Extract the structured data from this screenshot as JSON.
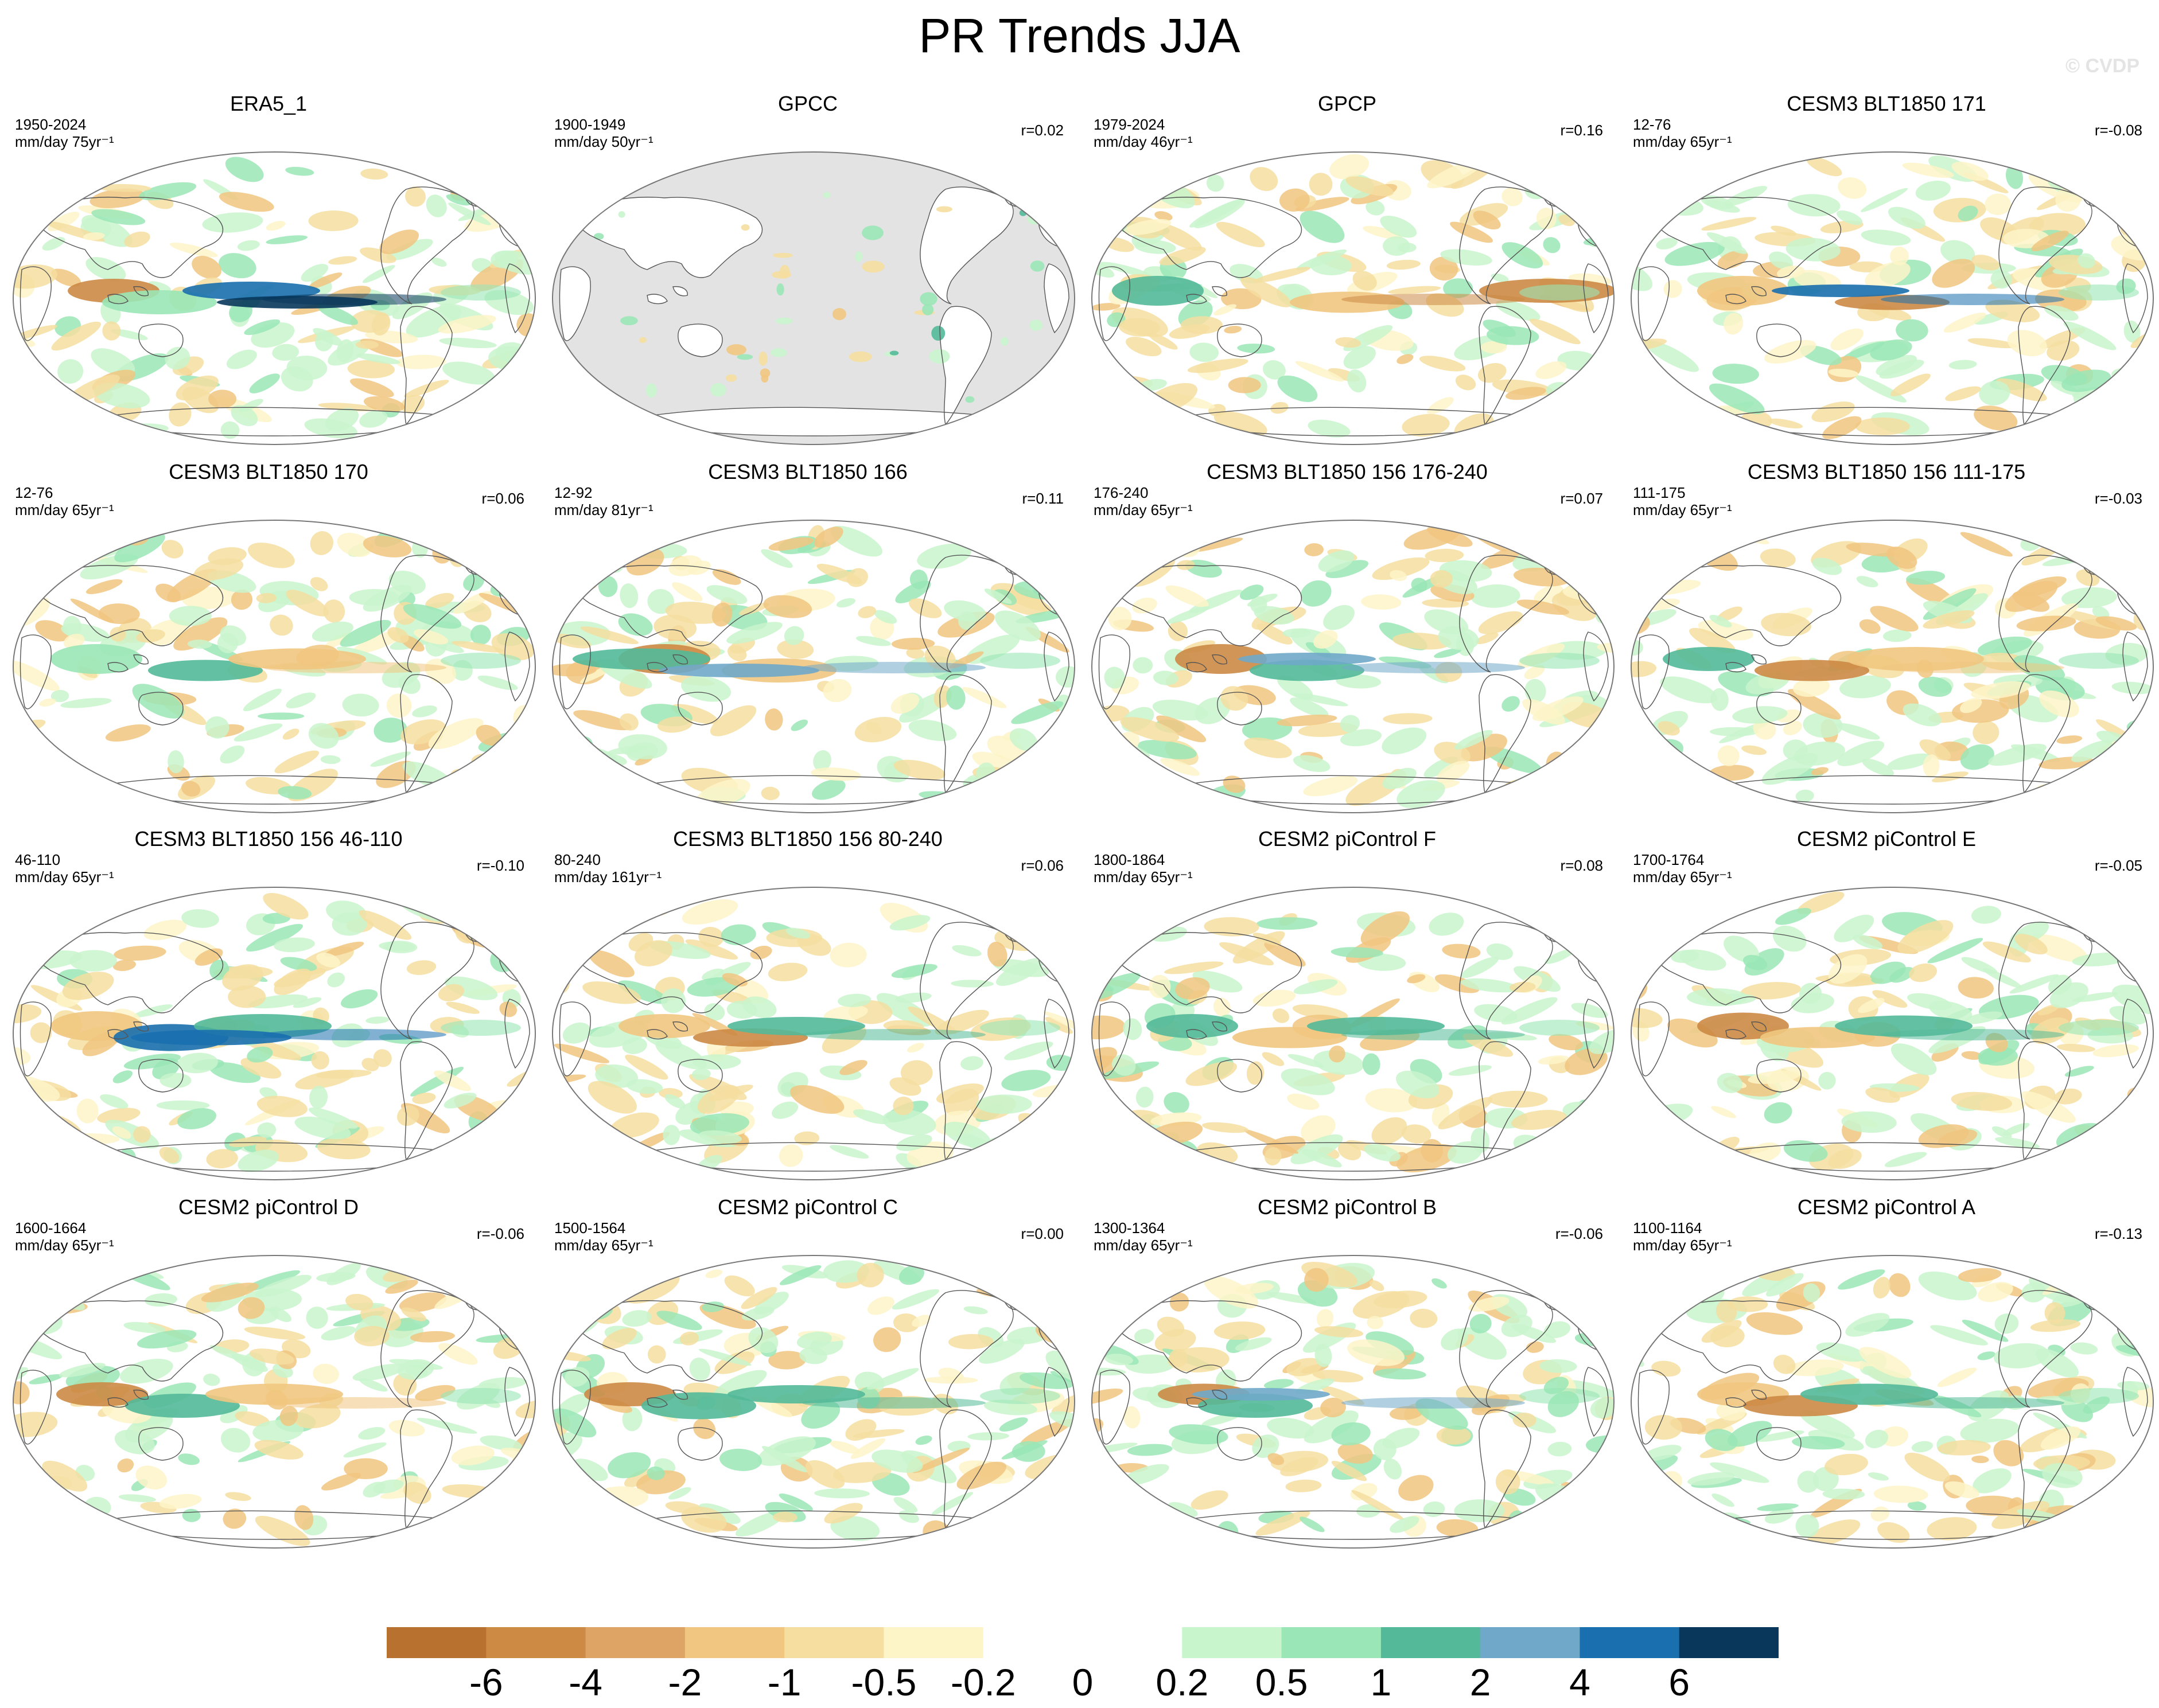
{
  "title": "PR Trends JJA",
  "watermark": "© CVDP",
  "panels": [
    {
      "name": "ERA5_1",
      "years": "1950-2024",
      "units": "mm/day 75yr⁻¹",
      "r": "",
      "style": "era5"
    },
    {
      "name": "GPCC",
      "years": "1900-1949",
      "units": "mm/day 50yr⁻¹",
      "r": "r=0.02",
      "style": "gpcc"
    },
    {
      "name": "GPCP",
      "years": "1979-2024",
      "units": "mm/day 46yr⁻¹",
      "r": "r=0.16",
      "style": "gpcp"
    },
    {
      "name": "CESM3 BLT1850 171",
      "years": "12-76",
      "units": "mm/day 65yr⁻¹",
      "r": "r=-0.08",
      "style": "a"
    },
    {
      "name": "CESM3 BLT1850 170",
      "years": "12-76",
      "units": "mm/day 65yr⁻¹",
      "r": "r=0.06",
      "style": "b"
    },
    {
      "name": "CESM3 BLT1850 166",
      "years": "12-92",
      "units": "mm/day 81yr⁻¹",
      "r": "r=0.11",
      "style": "c"
    },
    {
      "name": "CESM3 BLT1850 156 176-240",
      "years": "176-240",
      "units": "mm/day 65yr⁻¹",
      "r": "r=0.07",
      "style": "d"
    },
    {
      "name": "CESM3 BLT1850 156 111-175",
      "years": "111-175",
      "units": "mm/day 65yr⁻¹",
      "r": "r=-0.03",
      "style": "e"
    },
    {
      "name": "CESM3 BLT1850 156 46-110",
      "years": "46-110",
      "units": "mm/day 65yr⁻¹",
      "r": "r=-0.10",
      "style": "f"
    },
    {
      "name": "CESM3 BLT1850 156 80-240",
      "years": "80-240",
      "units": "mm/day 161yr⁻¹",
      "r": "r=0.06",
      "style": "g"
    },
    {
      "name": "CESM2 piControl F",
      "years": "1800-1864",
      "units": "mm/day 65yr⁻¹",
      "r": "r=0.08",
      "style": "h"
    },
    {
      "name": "CESM2 piControl E",
      "years": "1700-1764",
      "units": "mm/day 65yr⁻¹",
      "r": "r=-0.05",
      "style": "i"
    },
    {
      "name": "CESM2 piControl D",
      "years": "1600-1664",
      "units": "mm/day 65yr⁻¹",
      "r": "r=-0.06",
      "style": "j"
    },
    {
      "name": "CESM2 piControl C",
      "years": "1500-1564",
      "units": "mm/day 65yr⁻¹",
      "r": "r=0.00",
      "style": "k"
    },
    {
      "name": "CESM2 piControl B",
      "years": "1300-1364",
      "units": "mm/day 65yr⁻¹",
      "r": "r=-0.06",
      "style": "l"
    },
    {
      "name": "CESM2 piControl A",
      "years": "1100-1164",
      "units": "mm/day 65yr⁻¹",
      "r": "r=-0.13",
      "style": "m"
    }
  ],
  "colorbar": {
    "colors": [
      "#b8712f",
      "#cc8a45",
      "#dea466",
      "#f1c680",
      "#f5dea0",
      "#fdf5c8",
      "#ffffff",
      "#ffffff",
      "#c9f5cd",
      "#9ae6b6",
      "#53b999",
      "#6fa8c9",
      "#1a6fae",
      "#08375b"
    ],
    "tick_labels": [
      "-6",
      "-4",
      "-2",
      "-1",
      "-0.5",
      "-0.2",
      "0",
      "0.2",
      "0.5",
      "1",
      "2",
      "4",
      "6"
    ]
  },
  "map": {
    "land_fill_gpcc_missing": "#e3e3e3",
    "coast_color": "#555555"
  }
}
